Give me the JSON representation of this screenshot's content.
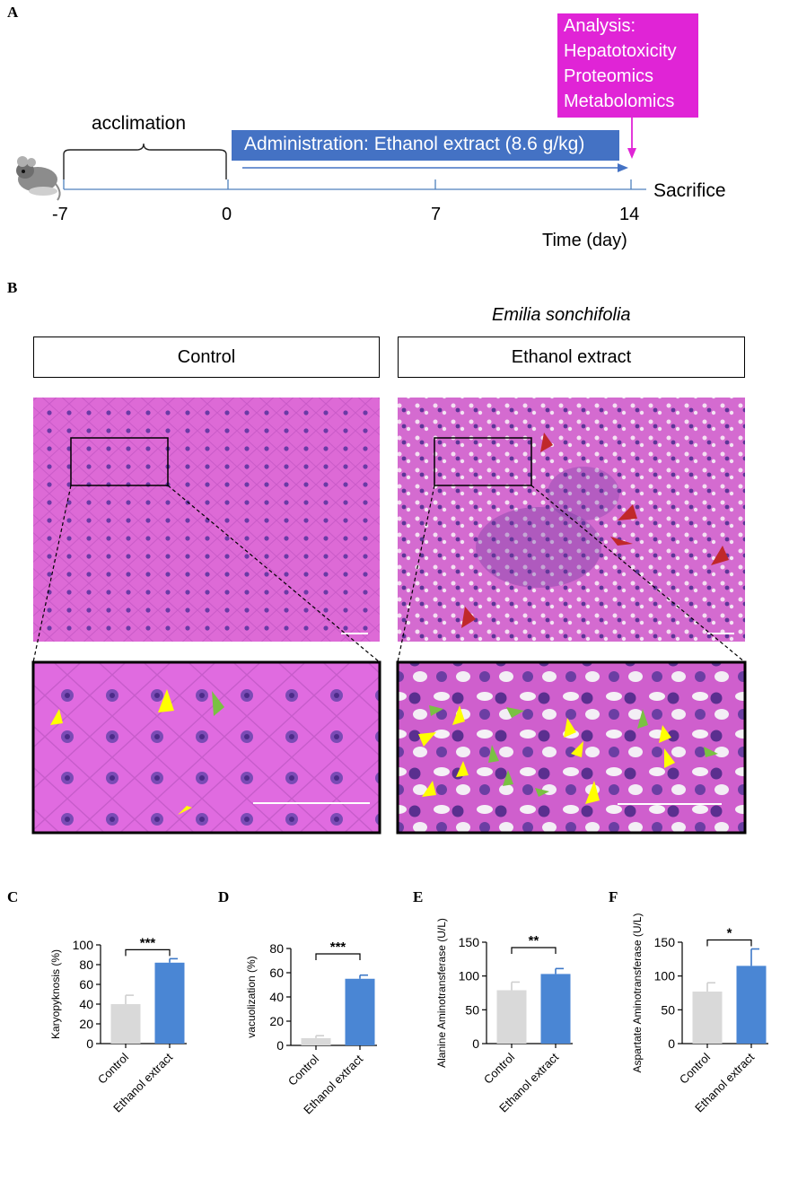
{
  "panels": {
    "a": "A",
    "b": "B",
    "c": "C",
    "d": "D",
    "e": "E",
    "f": "F"
  },
  "timeline": {
    "acclimation": "acclimation",
    "administration": "Administration: Ethanol extract (8.6 g/kg)",
    "analysis_lines": [
      "Analysis:",
      "Hepatotoxicity",
      "Proteomics",
      "Metabolomics"
    ],
    "sacrifice": "Sacrifice",
    "ticks": [
      "-7",
      "0",
      "7",
      "14"
    ],
    "time_label": "Time (day)",
    "colors": {
      "admin_bar": "#4472c4",
      "analysis_box": "#e024d6",
      "axis": "#4f81bd"
    }
  },
  "histology": {
    "species": "Emilia sonchifolia",
    "control_label": "Control",
    "extract_label": "Ethanol extract",
    "colors": {
      "tissue": "#d865d0",
      "nucleus": "#5b3a9a",
      "arrow_yellow": "#ffff00",
      "arrow_green": "#7ac143",
      "arrow_red": "#c0282a"
    }
  },
  "chart_data": [
    {
      "type": "bar",
      "panel": "C",
      "categories": [
        "Control",
        "Ethanol extract"
      ],
      "values": [
        40,
        82
      ],
      "errors": [
        9,
        4
      ],
      "ylabel": "Karyopyknosis (%)",
      "ylim": [
        0,
        100
      ],
      "yticks": [
        0,
        20,
        40,
        60,
        80,
        100
      ],
      "significance": "***"
    },
    {
      "type": "bar",
      "panel": "D",
      "categories": [
        "Control",
        "Ethanol extract"
      ],
      "values": [
        6,
        55
      ],
      "errors": [
        2,
        3
      ],
      "ylabel": "vacuolization (%)",
      "ylim": [
        0,
        80
      ],
      "yticks": [
        0,
        20,
        40,
        60,
        80
      ],
      "significance": "***"
    },
    {
      "type": "bar",
      "panel": "E",
      "categories": [
        "Control",
        "Ethanol extract"
      ],
      "values": [
        79,
        103
      ],
      "errors": [
        12,
        8
      ],
      "ylabel": "Alanine Aminotransferase (U/L)",
      "ylim": [
        0,
        150
      ],
      "yticks": [
        0,
        50,
        100,
        150
      ],
      "significance": "**"
    },
    {
      "type": "bar",
      "panel": "F",
      "categories": [
        "Control",
        "Ethanol extract"
      ],
      "values": [
        77,
        115
      ],
      "errors": [
        13,
        25
      ],
      "ylabel": "Aspartate Aminotransferase (U/L)",
      "ylim": [
        0,
        150
      ],
      "yticks": [
        0,
        50,
        100,
        150
      ],
      "significance": "*"
    }
  ],
  "bar_colors": [
    "#d9d9d9",
    "#4a86d4"
  ]
}
